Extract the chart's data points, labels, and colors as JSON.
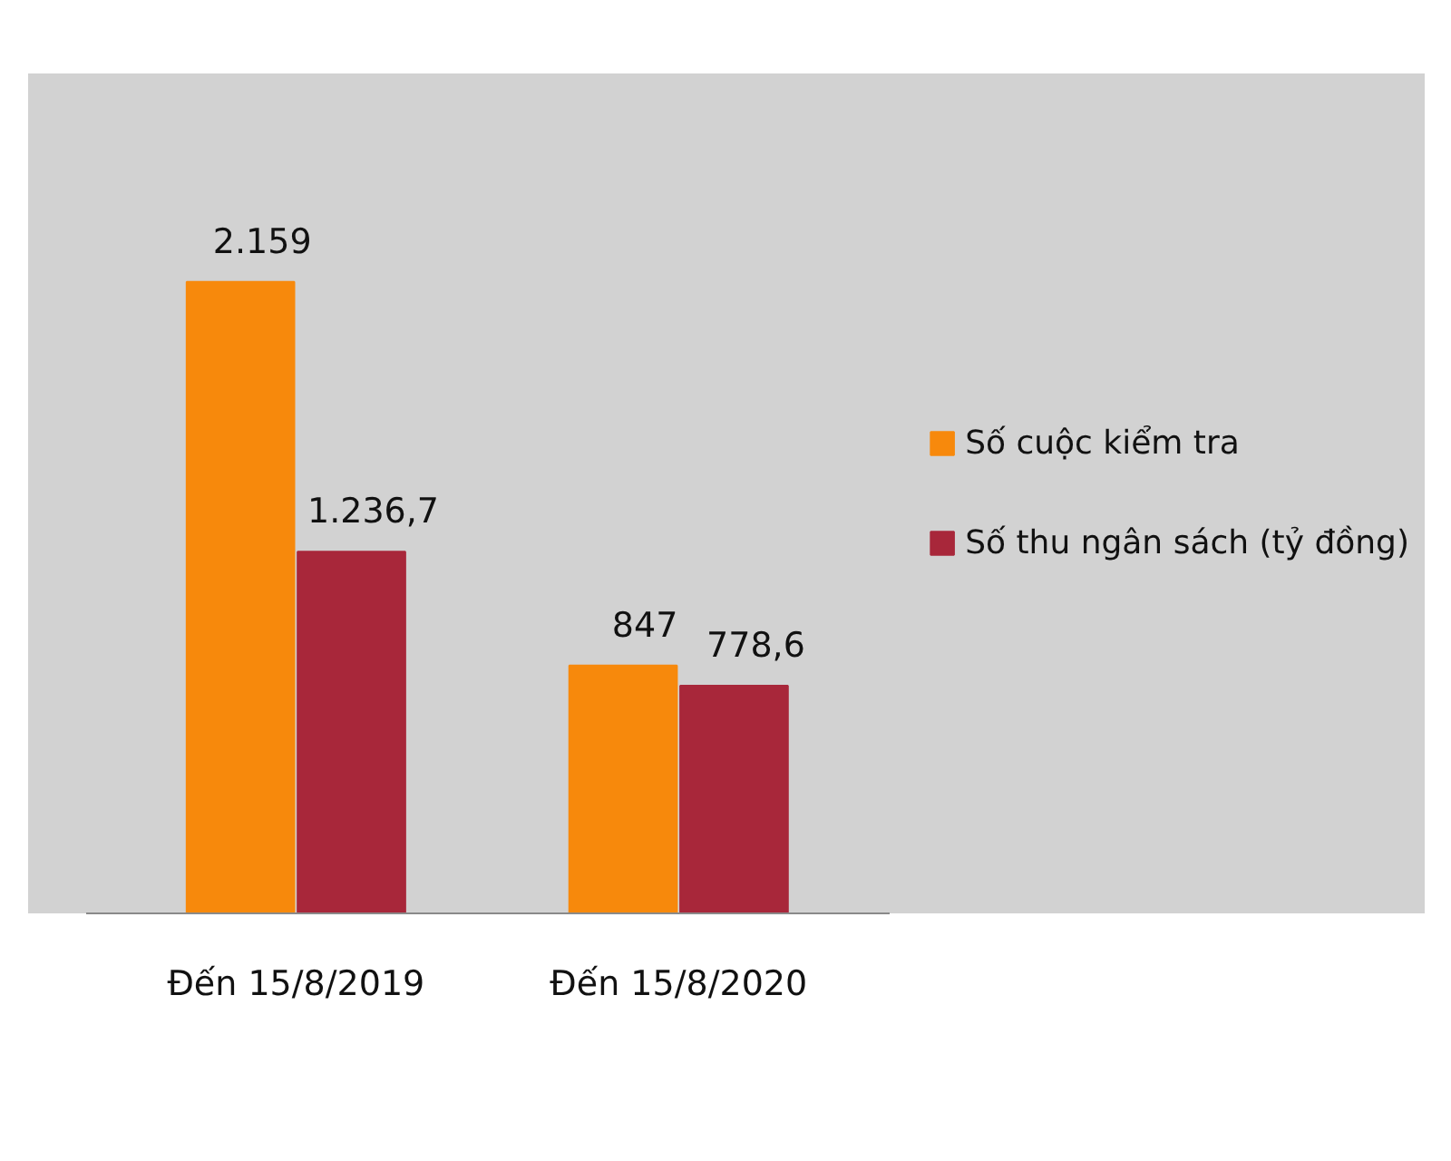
{
  "chart_data": {
    "type": "bar",
    "categories": [
      "Đến 15/8/2019",
      "Đến 15/8/2020"
    ],
    "series": [
      {
        "name": "Số cuộc kiểm tra",
        "color": "#f7890c",
        "values": [
          2159,
          847
        ],
        "value_labels": [
          "2.159",
          "847"
        ]
      },
      {
        "name": "Số thu ngân sách (tỷ đồng)",
        "color": "#a8273a",
        "values": [
          1236.7,
          778.6
        ],
        "value_labels": [
          "1.236,7",
          "778,6"
        ]
      }
    ],
    "tick_labels": "x",
    "legend": "right",
    "grid": false
  }
}
